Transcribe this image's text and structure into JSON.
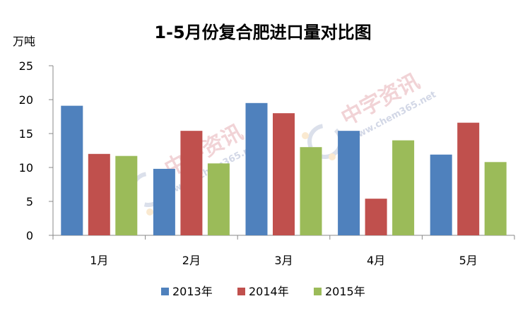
{
  "chart_data": {
    "type": "bar",
    "title": "1-5月份复合肥进口量对比图",
    "ylabel": "万吨",
    "categories": [
      "1月",
      "2月",
      "3月",
      "4月",
      "5月"
    ],
    "series": [
      {
        "name": "2013年",
        "color": "#4F81BD",
        "values": [
          19.1,
          9.8,
          19.5,
          15.4,
          11.9
        ]
      },
      {
        "name": "2014年",
        "color": "#C0504D",
        "values": [
          12.0,
          15.4,
          18.0,
          5.4,
          16.6
        ]
      },
      {
        "name": "2015年",
        "color": "#9BBB59",
        "values": [
          11.7,
          10.6,
          13.0,
          14.0,
          10.8
        ]
      }
    ],
    "yticks": [
      0,
      5,
      10,
      15,
      20,
      25
    ],
    "ylim": [
      0,
      25
    ],
    "grid": false,
    "legend_position": "bottom"
  },
  "watermark": {
    "brand": "中字资讯",
    "site": "www.chem365.net"
  }
}
